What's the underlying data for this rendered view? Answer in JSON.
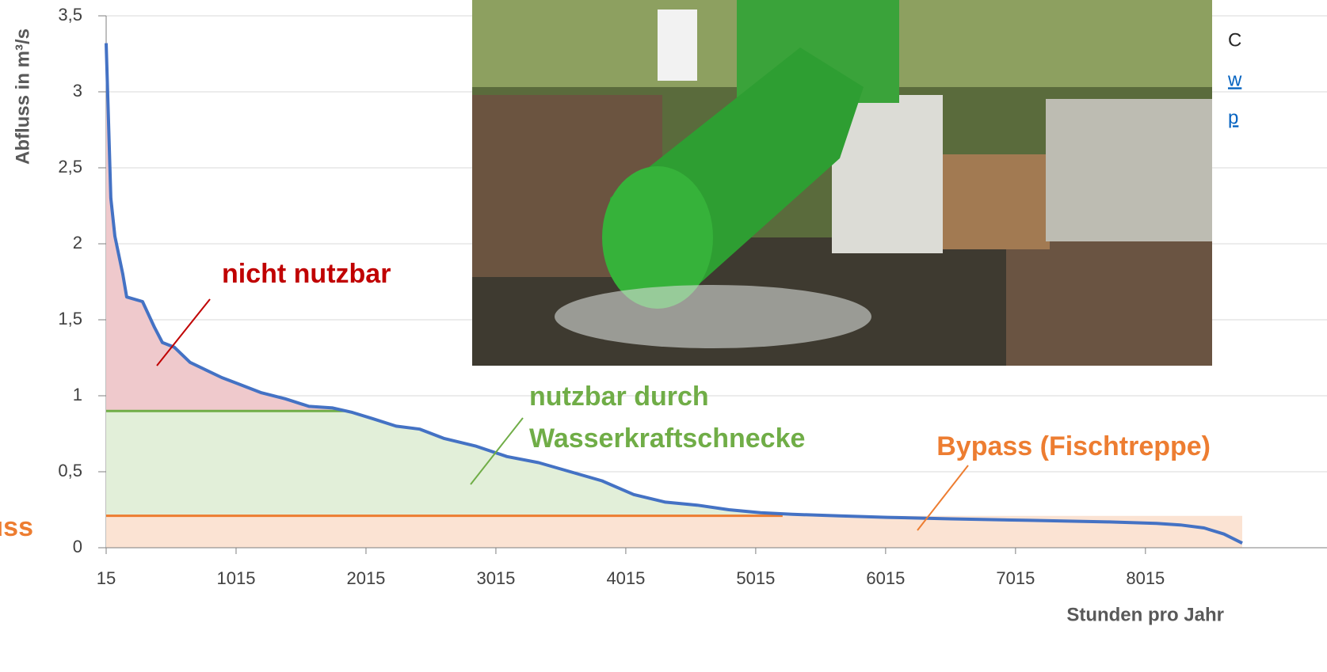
{
  "chart_data": {
    "type": "line",
    "y_axis_label": "Abfluss in m³/s",
    "x_axis_label": "Stunden pro Jahr",
    "xlim": [
      15,
      8760
    ],
    "ylim": [
      0,
      3.5
    ],
    "xticks": [
      15,
      1015,
      2015,
      3015,
      4015,
      5015,
      6015,
      7015,
      8015
    ],
    "yticks": [
      0,
      {
        "value": 0.5,
        "label": "0,5"
      },
      1,
      {
        "value": 1.5,
        "label": "1,5"
      },
      2,
      {
        "value": 2.5,
        "label": "2,5"
      },
      3,
      {
        "value": 3.5,
        "label": "3,5"
      }
    ],
    "grid": true,
    "x": [
      15,
      51,
      82,
      143,
      173,
      295,
      387,
      448,
      539,
      661,
      783,
      905,
      1027,
      1210,
      1393,
      1576,
      1759,
      1911,
      2064,
      2247,
      2430,
      2613,
      2856,
      3100,
      3344,
      3588,
      3832,
      4076,
      4320,
      4564,
      4808,
      5052,
      5296,
      5661,
      6027,
      6515,
      7125,
      7735,
      8100,
      8283,
      8466,
      8619,
      8760
    ],
    "series": [
      {
        "name": "Abfluss",
        "color": "#4472c4",
        "values": [
          3.32,
          2.3,
          2.05,
          1.8,
          1.65,
          1.62,
          1.45,
          1.35,
          1.32,
          1.22,
          1.17,
          1.12,
          1.08,
          1.02,
          0.98,
          0.93,
          0.92,
          0.89,
          0.85,
          0.8,
          0.78,
          0.72,
          0.67,
          0.6,
          0.56,
          0.5,
          0.44,
          0.35,
          0.3,
          0.28,
          0.25,
          0.23,
          0.22,
          0.21,
          0.2,
          0.19,
          0.18,
          0.17,
          0.16,
          0.15,
          0.13,
          0.09,
          0.03
        ]
      }
    ],
    "thresholds": [
      {
        "value": 0.9,
        "x_end": 1850,
        "color": "#70ad47",
        "fill": "#e2efd9"
      },
      {
        "value": 0.21,
        "x_end": 5222,
        "color": "#ed7d31",
        "fill": "#fbe3d3"
      }
    ],
    "top_fill": "#efc9cc",
    "annotations": [
      {
        "text": "nicht nutzbar",
        "color": "#c00000"
      },
      {
        "text": "nutzbar durch",
        "color": "#70ad47"
      },
      {
        "text": "Wasserkraftschnecke",
        "color": "#70ad47"
      },
      {
        "text": "Bypass (Fischtreppe)",
        "color": "#ed7d31"
      },
      {
        "text": "uss",
        "color": "#ed7d31"
      }
    ],
    "side_text": [
      "C",
      "w",
      "p"
    ]
  }
}
